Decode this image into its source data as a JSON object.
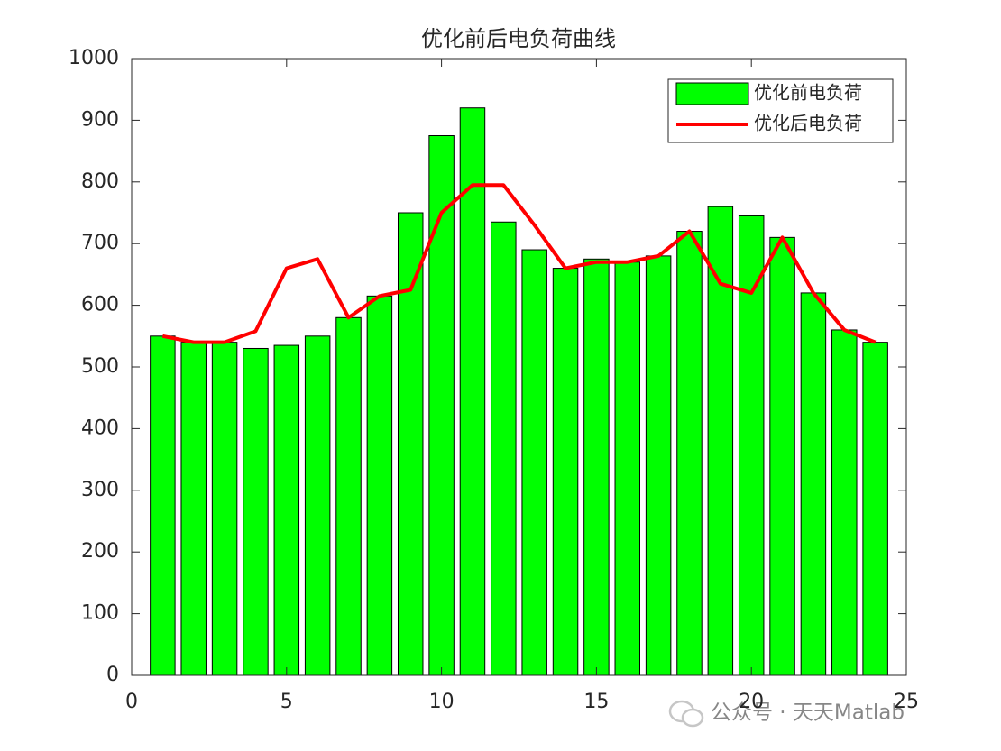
{
  "chart_data": {
    "type": "bar",
    "title": "优化前后电负荷曲线",
    "x": [
      1,
      2,
      3,
      4,
      5,
      6,
      7,
      8,
      9,
      10,
      11,
      12,
      13,
      14,
      15,
      16,
      17,
      18,
      19,
      20,
      21,
      22,
      23,
      24
    ],
    "series": [
      {
        "name": "优化前电负荷",
        "type": "bar",
        "color": "#00ff00",
        "values": [
          550,
          540,
          540,
          530,
          535,
          550,
          580,
          615,
          750,
          875,
          920,
          735,
          690,
          660,
          675,
          670,
          680,
          720,
          760,
          745,
          710,
          620,
          560,
          540
        ]
      },
      {
        "name": "优化后电负荷",
        "type": "line",
        "color": "#ff0000",
        "values": [
          550,
          540,
          540,
          558,
          660,
          675,
          580,
          615,
          625,
          750,
          795,
          795,
          730,
          660,
          670,
          670,
          680,
          720,
          635,
          620,
          710,
          620,
          560,
          540
        ]
      }
    ],
    "xlim": [
      0,
      25
    ],
    "xticks": [
      0,
      5,
      10,
      15,
      20,
      25
    ],
    "ylim": [
      0,
      1000
    ],
    "yticks": [
      0,
      100,
      200,
      300,
      400,
      500,
      600,
      700,
      800,
      900,
      1000
    ],
    "grid": false,
    "legend": "northeast",
    "watermark": "公众号 · 天天Matlab"
  }
}
